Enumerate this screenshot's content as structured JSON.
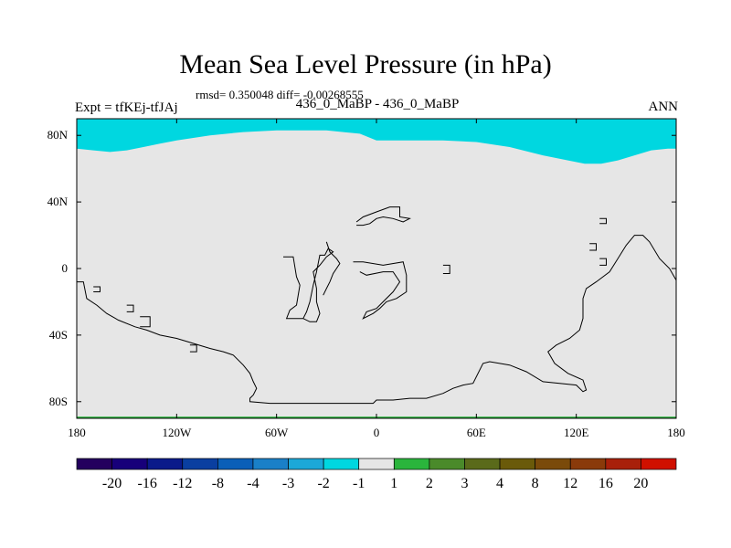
{
  "title": "Mean Sea Level Pressure (in hPa)",
  "stats": "rmsd= 0.350048 diff= -0.00268555",
  "subtitle": "436_0_MaBP - 436_0_MaBP",
  "expt": "Expt = tfKEj-tfJAj",
  "season": "ANN",
  "chart_data": {
    "type": "heatmap",
    "title": "Mean Sea Level Pressure (in hPa)",
    "xlim": [
      -180,
      180
    ],
    "ylim": [
      -90,
      90
    ],
    "x_ticks": [
      {
        "value": -180,
        "label": "180"
      },
      {
        "value": -120,
        "label": "120W"
      },
      {
        "value": -60,
        "label": "60W"
      },
      {
        "value": 0,
        "label": "0"
      },
      {
        "value": 60,
        "label": "60E"
      },
      {
        "value": 120,
        "label": "120E"
      },
      {
        "value": 180,
        "label": "180"
      }
    ],
    "y_ticks": [
      {
        "value": 80,
        "label": "80N"
      },
      {
        "value": 40,
        "label": "40N"
      },
      {
        "value": 0,
        "label": "0"
      },
      {
        "value": -40,
        "label": "40S"
      },
      {
        "value": -80,
        "label": "80S"
      }
    ],
    "background_class": "-1 to 1",
    "background_color": "#e6e6e6",
    "north_region": {
      "class": "-2 to -1",
      "color": "#00d7e0",
      "boundary": [
        [
          -180,
          72
        ],
        [
          -170,
          71
        ],
        [
          -160,
          70
        ],
        [
          -150,
          71
        ],
        [
          -140,
          73
        ],
        [
          -130,
          75
        ],
        [
          -120,
          77
        ],
        [
          -100,
          80
        ],
        [
          -80,
          82
        ],
        [
          -60,
          83
        ],
        [
          -30,
          83
        ],
        [
          -10,
          81
        ],
        [
          0,
          77
        ],
        [
          20,
          77
        ],
        [
          40,
          77
        ],
        [
          60,
          76
        ],
        [
          80,
          73
        ],
        [
          100,
          68
        ],
        [
          115,
          65
        ],
        [
          125,
          63
        ],
        [
          135,
          63
        ],
        [
          145,
          65
        ],
        [
          155,
          68
        ],
        [
          165,
          71
        ],
        [
          175,
          72
        ],
        [
          180,
          72
        ]
      ]
    },
    "south_strip": {
      "class": "1 to 2",
      "color": "#2ab53c",
      "lat_below": -89
    },
    "colorbar": {
      "labels": [
        "-20",
        "-16",
        "-12",
        "-8",
        "-4",
        "-3",
        "-2",
        "-1",
        "1",
        "2",
        "3",
        "4",
        "8",
        "12",
        "16",
        "20"
      ],
      "colors": [
        "#24005e",
        "#17007a",
        "#0a1a8a",
        "#0a3fa0",
        "#0a5fb8",
        "#1a80c8",
        "#1ca8d8",
        "#00d7e0",
        "#e6e6e6",
        "#2ab53c",
        "#4a8a2a",
        "#5a6a1a",
        "#6a5a0a",
        "#7a4a0a",
        "#8a3a0a",
        "#a8200a",
        "#d01000"
      ]
    },
    "coastlines": [
      [
        [
          -180,
          -8
        ],
        [
          -176,
          -8
        ],
        [
          -174,
          -18
        ],
        [
          -168,
          -22
        ],
        [
          -162,
          -27
        ],
        [
          -155,
          -31
        ],
        [
          -145,
          -35
        ],
        [
          -138,
          -37
        ],
        [
          -130,
          -40
        ],
        [
          -120,
          -42
        ],
        [
          -110,
          -45
        ],
        [
          -100,
          -48
        ],
        [
          -92,
          -50
        ],
        [
          -86,
          -52
        ],
        [
          -80,
          -58
        ],
        [
          -76,
          -63
        ],
        [
          -74,
          -68
        ],
        [
          -72,
          -72
        ],
        [
          -74,
          -76
        ],
        [
          -76,
          -78
        ],
        [
          -76,
          -80
        ],
        [
          -64,
          -81
        ],
        [
          -40,
          -81
        ],
        [
          -20,
          -81
        ],
        [
          -2,
          -81
        ],
        [
          0,
          -79
        ],
        [
          10,
          -79
        ],
        [
          20,
          -78
        ],
        [
          30,
          -78
        ],
        [
          40,
          -75
        ],
        [
          46,
          -72
        ],
        [
          52,
          -70
        ],
        [
          58,
          -69
        ],
        [
          64,
          -57
        ],
        [
          68,
          -56
        ],
        [
          80,
          -58
        ],
        [
          90,
          -62
        ],
        [
          100,
          -68
        ],
        [
          120,
          -70
        ],
        [
          124,
          -74
        ],
        [
          126,
          -73
        ],
        [
          124,
          -67
        ],
        [
          115,
          -63
        ],
        [
          107,
          -57
        ],
        [
          103,
          -50
        ],
        [
          108,
          -46
        ],
        [
          116,
          -42
        ],
        [
          122,
          -37
        ],
        [
          124,
          -30
        ],
        [
          124,
          -25
        ],
        [
          124,
          -18
        ],
        [
          126,
          -12
        ],
        [
          132,
          -8
        ],
        [
          140,
          -2
        ],
        [
          145,
          6
        ],
        [
          150,
          14
        ],
        [
          155,
          20
        ],
        [
          160,
          20
        ],
        [
          164,
          16
        ],
        [
          170,
          6
        ],
        [
          176,
          0
        ],
        [
          180,
          -7
        ]
      ],
      [
        [
          -56,
          7
        ],
        [
          -50,
          7
        ],
        [
          -48,
          -5
        ],
        [
          -46,
          -10
        ],
        [
          -48,
          -22
        ],
        [
          -52,
          -25
        ],
        [
          -54,
          -30
        ],
        [
          -44,
          -30
        ],
        [
          -40,
          -32
        ],
        [
          -36,
          -32
        ],
        [
          -34,
          -27
        ],
        [
          -36,
          -20
        ],
        [
          -36,
          -12
        ],
        [
          -38,
          -2
        ],
        [
          -34,
          2
        ],
        [
          -30,
          7
        ],
        [
          -26,
          10
        ],
        [
          -29,
          12
        ],
        [
          -31,
          8
        ],
        [
          -34,
          8
        ],
        [
          -36,
          -2
        ],
        [
          -38,
          -10
        ],
        [
          -40,
          -20
        ],
        [
          -42,
          -26
        ],
        [
          -44,
          -30
        ]
      ],
      [
        [
          -14,
          4
        ],
        [
          -8,
          4
        ],
        [
          4,
          2
        ],
        [
          16,
          4
        ],
        [
          18,
          -4
        ],
        [
          18,
          -14
        ],
        [
          12,
          -18
        ],
        [
          6,
          -20
        ],
        [
          2,
          -24
        ],
        [
          -2,
          -27
        ],
        [
          -8,
          -30
        ],
        [
          -6,
          -26
        ],
        [
          0,
          -24
        ],
        [
          4,
          -20
        ],
        [
          10,
          -14
        ],
        [
          14,
          -8
        ],
        [
          10,
          -2
        ],
        [
          4,
          -2
        ],
        [
          -6,
          -4
        ],
        [
          -10,
          -2
        ]
      ],
      [
        [
          -12,
          28
        ],
        [
          -8,
          31
        ],
        [
          0,
          34
        ],
        [
          8,
          37
        ],
        [
          14,
          37
        ],
        [
          14,
          31
        ],
        [
          20,
          30
        ],
        [
          16,
          28
        ],
        [
          10,
          30
        ],
        [
          4,
          31
        ],
        [
          0,
          30
        ],
        [
          -4,
          27
        ],
        [
          -8,
          26
        ],
        [
          -12,
          26
        ]
      ],
      [
        [
          -30,
          16
        ],
        [
          -28,
          10
        ],
        [
          -24,
          6
        ],
        [
          -22,
          3
        ],
        [
          -26,
          -3
        ],
        [
          -28,
          -8
        ],
        [
          -30,
          -12
        ],
        [
          -32,
          -16
        ]
      ],
      [
        [
          134,
          30
        ],
        [
          138,
          30
        ],
        [
          138,
          27
        ],
        [
          134,
          27
        ]
      ],
      [
        [
          128,
          15
        ],
        [
          132,
          15
        ],
        [
          132,
          11
        ],
        [
          128,
          11
        ]
      ],
      [
        [
          134,
          6
        ],
        [
          138,
          6
        ],
        [
          138,
          2
        ],
        [
          134,
          2
        ]
      ],
      [
        [
          40,
          2
        ],
        [
          44,
          2
        ],
        [
          44,
          -3
        ],
        [
          40,
          -3
        ]
      ],
      [
        [
          -170,
          -11
        ],
        [
          -166,
          -11
        ],
        [
          -166,
          -14
        ],
        [
          -170,
          -14
        ]
      ],
      [
        [
          -150,
          -22
        ],
        [
          -146,
          -22
        ],
        [
          -146,
          -26
        ],
        [
          -150,
          -26
        ]
      ],
      [
        [
          -142,
          -29
        ],
        [
          -136,
          -29
        ],
        [
          -136,
          -35
        ],
        [
          -142,
          -35
        ]
      ],
      [
        [
          -112,
          -46
        ],
        [
          -108,
          -46
        ],
        [
          -108,
          -50
        ],
        [
          -112,
          -50
        ]
      ]
    ]
  }
}
